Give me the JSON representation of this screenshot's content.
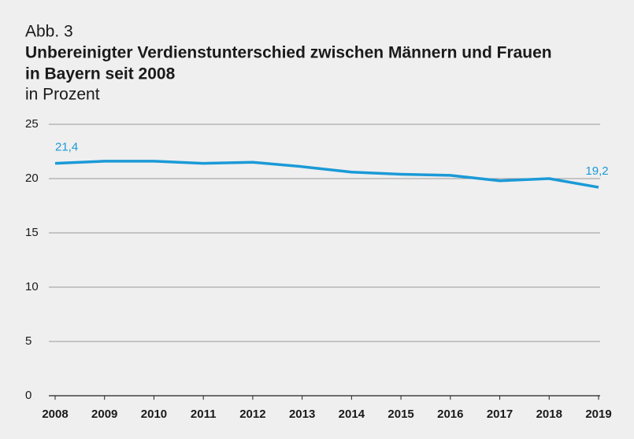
{
  "chart_data": {
    "type": "line",
    "label": "Abb. 3",
    "title": [
      "Unbereinigter Verdienstunterschied zwischen Männern und Frauen",
      "in Bayern seit 2008"
    ],
    "subtitle": "in Prozent",
    "categories": [
      "2008",
      "2009",
      "2010",
      "2011",
      "2012",
      "2013",
      "2014",
      "2015",
      "2016",
      "2017",
      "2018",
      "2019"
    ],
    "series": [
      {
        "name": "Verdienstunterschied",
        "color": "#1b9ad7",
        "values": [
          21.4,
          21.6,
          21.6,
          21.4,
          21.5,
          21.1,
          20.6,
          20.4,
          20.3,
          19.8,
          20.0,
          19.2
        ],
        "value_labels": [
          "21,4",
          null,
          null,
          null,
          null,
          null,
          null,
          null,
          null,
          null,
          null,
          "19,2"
        ]
      }
    ],
    "ylim": [
      0,
      25
    ],
    "yticks": [
      0,
      5,
      10,
      15,
      20,
      25
    ],
    "grid": true
  }
}
